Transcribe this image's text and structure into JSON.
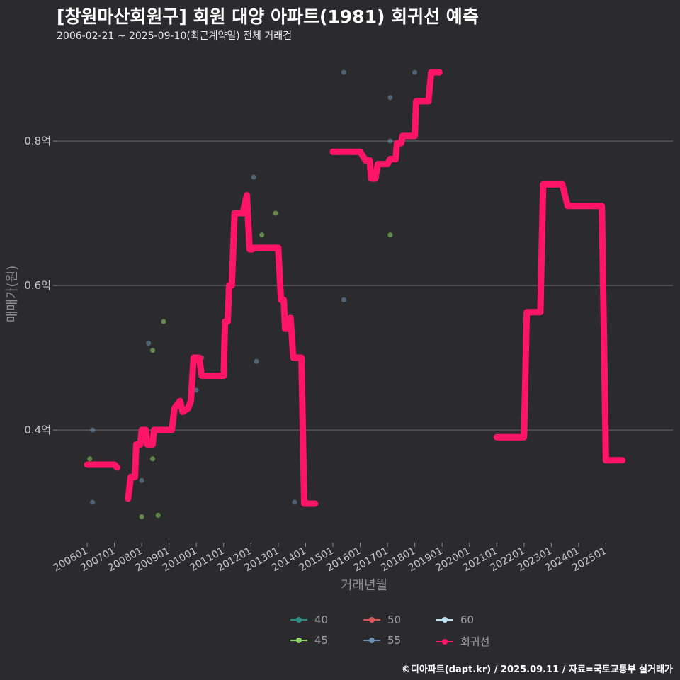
{
  "title": "[창원마산회원구] 회원 대양 아파트(1981) 회귀선 예측",
  "subtitle": "2006-02-21 ~ 2025-09-10(최근계약일) 전체 거래건",
  "credit": "©디아파트(dapt.kr) / 2025.09.11 / 자료=국토교통부 실거래가",
  "chart_data": {
    "type": "line",
    "title": "[창원마산회원구] 회원 대양 아파트(1981) 회귀선 예측",
    "xlabel": "거래년월",
    "ylabel": "매매가(원)",
    "x_ticks": [
      "200601",
      "200701",
      "200801",
      "200901",
      "201001",
      "201101",
      "201201",
      "201301",
      "201401",
      "201501",
      "201601",
      "201701",
      "201801",
      "201901",
      "202001",
      "202101",
      "202201",
      "202301",
      "202401",
      "202501"
    ],
    "y_ticks": [
      {
        "value": 0.4,
        "label": "0.4억"
      },
      {
        "value": 0.6,
        "label": "0.6억"
      },
      {
        "value": 0.8,
        "label": "0.8억"
      }
    ],
    "ylim": [
      0.255,
      0.905
    ],
    "grid": true,
    "legend": [
      {
        "name": "40",
        "color": "#2e8c86"
      },
      {
        "name": "45",
        "color": "#8fd66a"
      },
      {
        "name": "50",
        "color": "#d9565b"
      },
      {
        "name": "55",
        "color": "#6d8fb3"
      },
      {
        "name": "60",
        "color": "#b8e2f2"
      },
      {
        "name": "회귀선",
        "color": "#ff1466"
      }
    ],
    "scatter": [
      {
        "x": 2006.1,
        "y": 0.36,
        "series": "45"
      },
      {
        "x": 2006.2,
        "y": 0.4,
        "series": "55"
      },
      {
        "x": 2006.2,
        "y": 0.3,
        "series": "55"
      },
      {
        "x": 2008.0,
        "y": 0.33,
        "series": "55"
      },
      {
        "x": 2008.0,
        "y": 0.28,
        "series": "45"
      },
      {
        "x": 2008.25,
        "y": 0.52,
        "series": "55"
      },
      {
        "x": 2008.4,
        "y": 0.51,
        "series": "45"
      },
      {
        "x": 2008.4,
        "y": 0.36,
        "series": "45"
      },
      {
        "x": 2008.6,
        "y": 0.282,
        "series": "45"
      },
      {
        "x": 2008.8,
        "y": 0.55,
        "series": "45"
      },
      {
        "x": 2010.0,
        "y": 0.455,
        "series": "55"
      },
      {
        "x": 2010.2,
        "y": 0.5,
        "series": "50"
      },
      {
        "x": 2012.1,
        "y": 0.75,
        "series": "55"
      },
      {
        "x": 2012.2,
        "y": 0.495,
        "series": "55"
      },
      {
        "x": 2012.4,
        "y": 0.67,
        "series": "45"
      },
      {
        "x": 2012.9,
        "y": 0.7,
        "series": "45"
      },
      {
        "x": 2013.6,
        "y": 0.3,
        "series": "55"
      },
      {
        "x": 2015.4,
        "y": 0.58,
        "series": "55"
      },
      {
        "x": 2015.4,
        "y": 0.895,
        "series": "55"
      },
      {
        "x": 2016.6,
        "y": 0.75,
        "series": "55"
      },
      {
        "x": 2017.1,
        "y": 0.67,
        "series": "45"
      },
      {
        "x": 2017.1,
        "y": 0.8,
        "series": "55"
      },
      {
        "x": 2017.1,
        "y": 0.86,
        "series": "55"
      },
      {
        "x": 2018.0,
        "y": 0.895,
        "series": "55"
      }
    ],
    "regression_segments": [
      [
        [
          2006.0,
          0.352
        ],
        [
          2007.0,
          0.352
        ],
        [
          2007.1,
          0.348
        ]
      ],
      [
        [
          2007.5,
          0.305
        ],
        [
          2007.6,
          0.335
        ],
        [
          2007.75,
          0.335
        ],
        [
          2007.8,
          0.38
        ],
        [
          2007.95,
          0.38
        ],
        [
          2008.0,
          0.4
        ],
        [
          2008.15,
          0.4
        ],
        [
          2008.2,
          0.38
        ],
        [
          2008.4,
          0.38
        ],
        [
          2008.45,
          0.4
        ],
        [
          2009.1,
          0.4
        ],
        [
          2009.2,
          0.43
        ],
        [
          2009.4,
          0.44
        ],
        [
          2009.5,
          0.425
        ],
        [
          2009.7,
          0.43
        ],
        [
          2009.8,
          0.44
        ],
        [
          2009.9,
          0.5
        ],
        [
          2010.1,
          0.5
        ],
        [
          2010.2,
          0.475
        ],
        [
          2011.0,
          0.475
        ],
        [
          2011.05,
          0.55
        ],
        [
          2011.15,
          0.55
        ],
        [
          2011.2,
          0.6
        ],
        [
          2011.3,
          0.6
        ],
        [
          2011.4,
          0.7
        ],
        [
          2011.7,
          0.7
        ],
        [
          2011.85,
          0.725
        ],
        [
          2011.95,
          0.65
        ],
        [
          2012.05,
          0.65
        ],
        [
          2012.1,
          0.652
        ],
        [
          2013.0,
          0.652
        ],
        [
          2013.1,
          0.58
        ],
        [
          2013.2,
          0.58
        ],
        [
          2013.25,
          0.54
        ],
        [
          2013.35,
          0.54
        ],
        [
          2013.45,
          0.555
        ],
        [
          2013.55,
          0.5
        ],
        [
          2013.85,
          0.5
        ],
        [
          2013.95,
          0.298
        ],
        [
          2014.35,
          0.298
        ]
      ],
      [
        [
          2015.0,
          0.785
        ],
        [
          2016.0,
          0.785
        ],
        [
          2016.2,
          0.773
        ],
        [
          2016.35,
          0.773
        ],
        [
          2016.4,
          0.748
        ],
        [
          2016.55,
          0.748
        ],
        [
          2016.65,
          0.768
        ],
        [
          2017.0,
          0.768
        ],
        [
          2017.1,
          0.775
        ],
        [
          2017.3,
          0.775
        ],
        [
          2017.35,
          0.797
        ],
        [
          2017.5,
          0.797
        ],
        [
          2017.55,
          0.807
        ],
        [
          2018.0,
          0.807
        ],
        [
          2018.05,
          0.855
        ],
        [
          2018.5,
          0.855
        ],
        [
          2018.6,
          0.895
        ],
        [
          2018.9,
          0.895
        ]
      ],
      [
        [
          2021.0,
          0.39
        ],
        [
          2022.0,
          0.39
        ],
        [
          2022.1,
          0.563
        ],
        [
          2022.6,
          0.563
        ],
        [
          2022.7,
          0.74
        ],
        [
          2023.4,
          0.74
        ],
        [
          2023.6,
          0.71
        ],
        [
          2024.85,
          0.71
        ],
        [
          2025.0,
          0.358
        ],
        [
          2025.6,
          0.358
        ]
      ]
    ]
  }
}
